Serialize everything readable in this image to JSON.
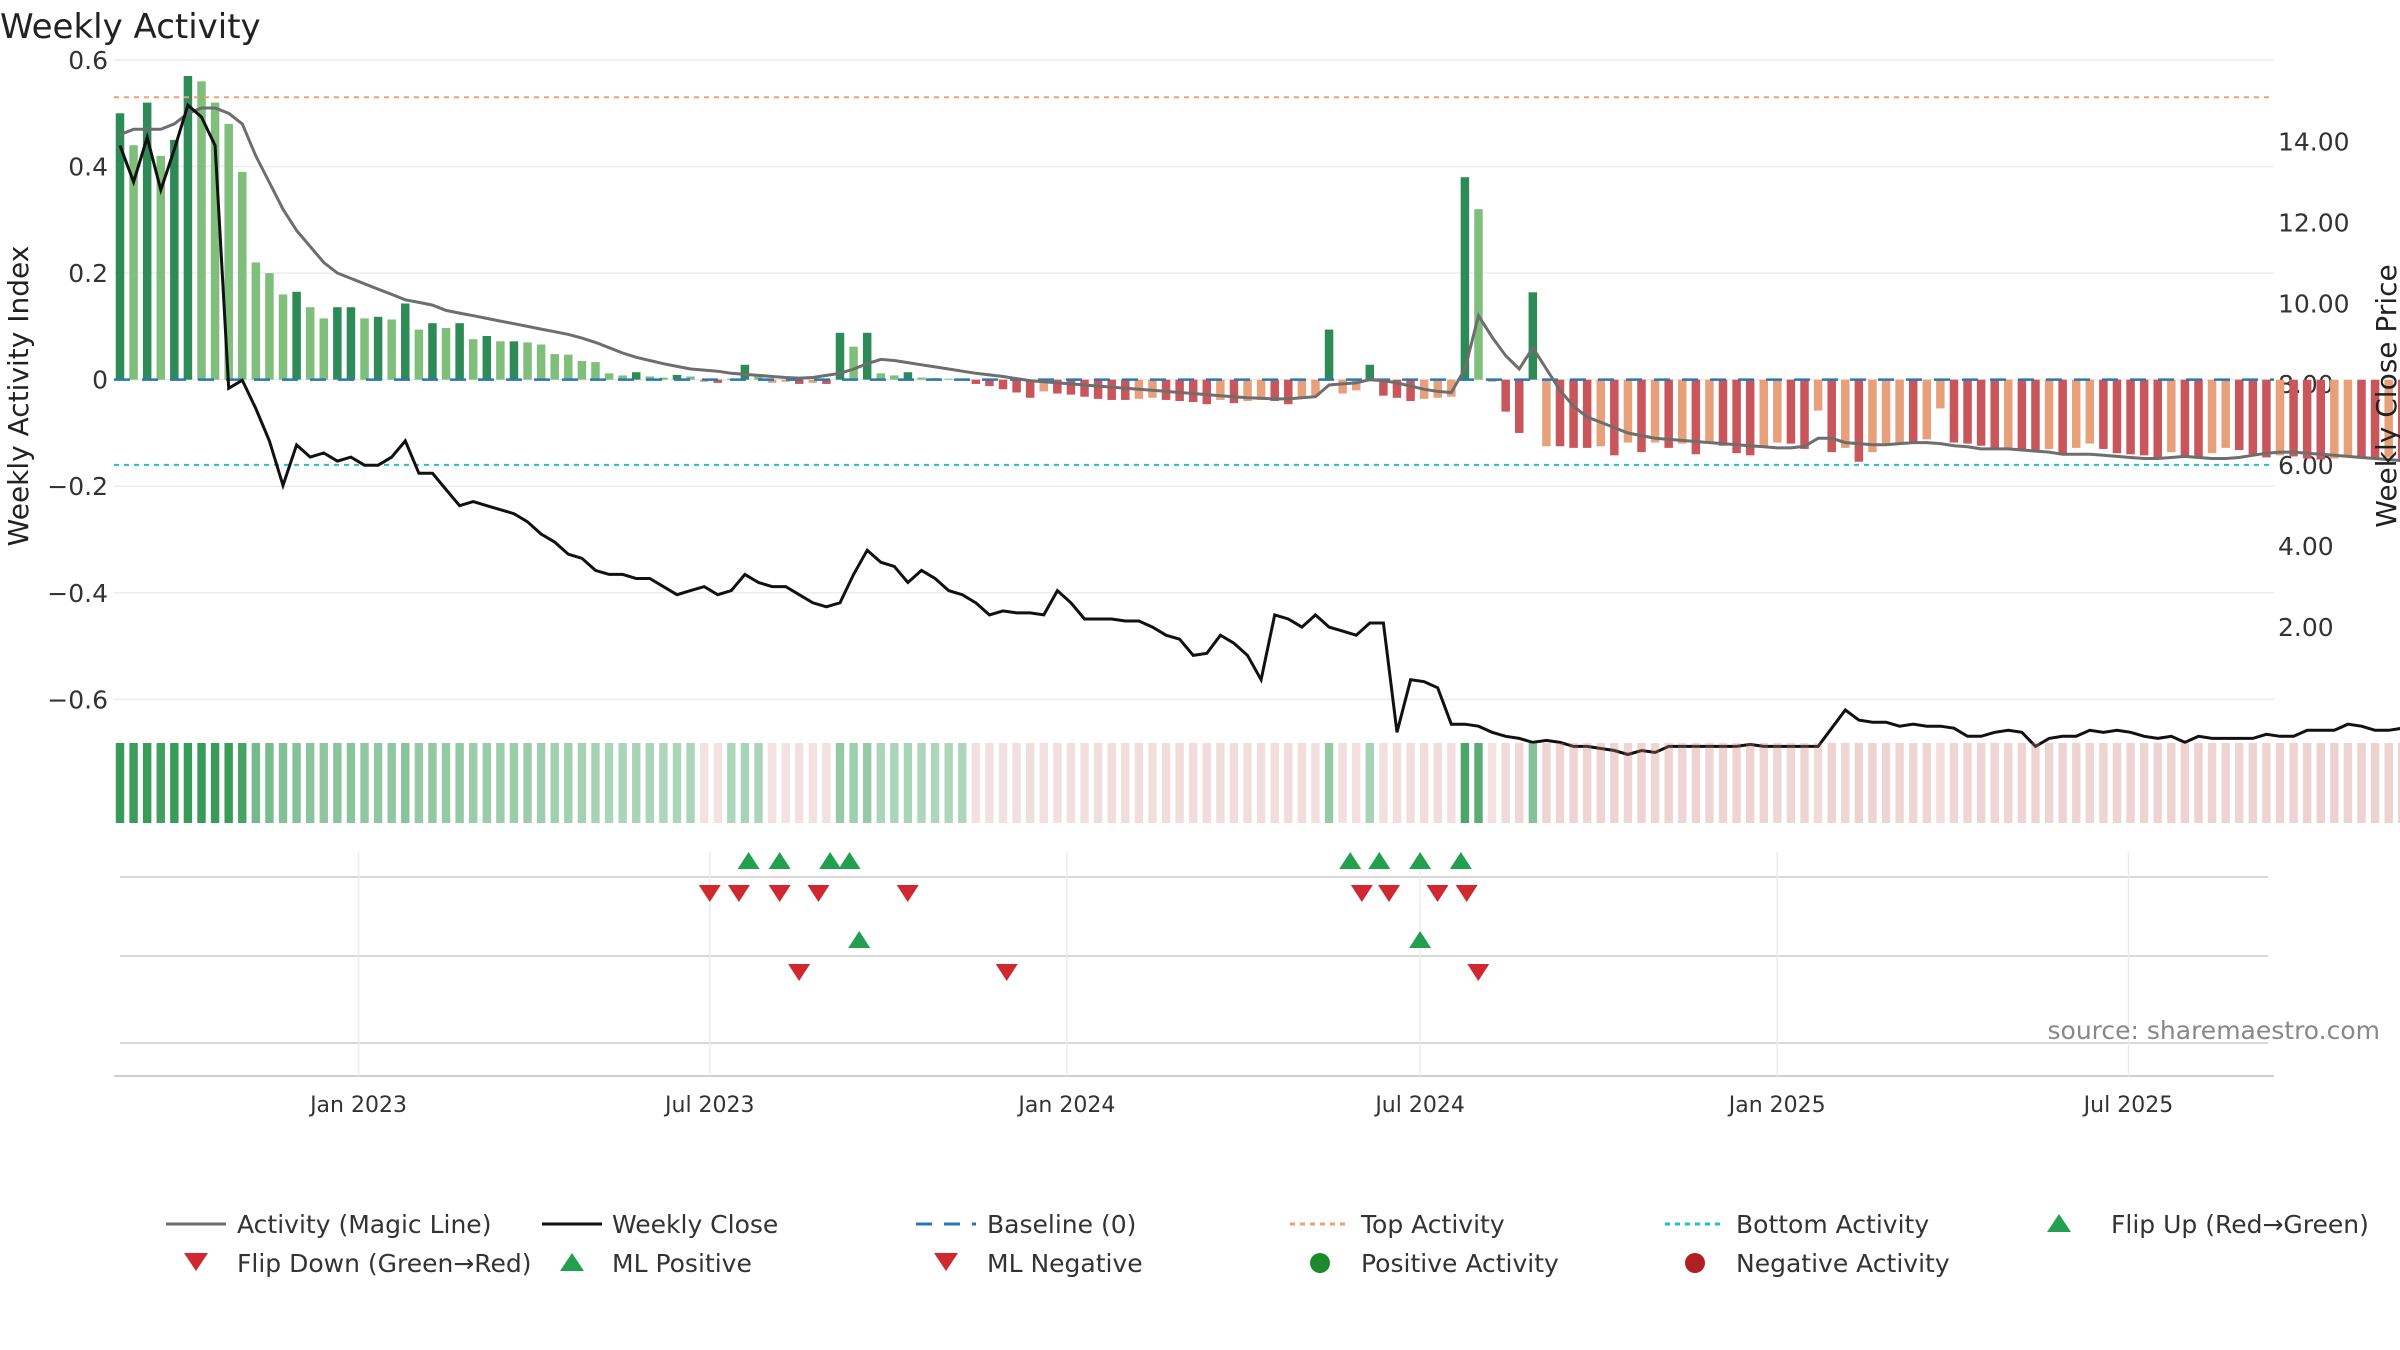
{
  "chart_data": {
    "type": "bar",
    "title": "Weekly Activity",
    "ylabel_left": "Weekly Activity Index",
    "ylabel_right": "Weekly Close Price",
    "source": "source: sharemaestro.com",
    "ylim_left": [
      -0.65,
      0.6
    ],
    "ylim_right": [
      0,
      14.9
    ],
    "yticks_left": [
      "0.6",
      "0.4",
      "0.2",
      "0",
      "−0.2",
      "−0.4",
      "−0.6"
    ],
    "yticks_left_values": [
      0.6,
      0.4,
      0.2,
      0,
      -0.2,
      -0.4,
      -0.6
    ],
    "yticks_right": [
      "14.00",
      "12.00",
      "10.00",
      "8.00",
      "6.00",
      "4.00",
      "2.00"
    ],
    "yticks_right_values": [
      14,
      12,
      10,
      8,
      6,
      4,
      2
    ],
    "x_range": [
      "2022-08-28",
      "2025-09-14"
    ],
    "xticks": [
      {
        "label": "Jan 2023",
        "date": "2023-01-01"
      },
      {
        "label": "Jul 2023",
        "date": "2023-07-01"
      },
      {
        "label": "Jan 2024",
        "date": "2024-01-01"
      },
      {
        "label": "Jul 2024",
        "date": "2024-07-01"
      },
      {
        "label": "Jan 2025",
        "date": "2025-01-01"
      },
      {
        "label": "Jul 2025",
        "date": "2025-07-01"
      }
    ],
    "top_activity": 0.53,
    "bottom_activity": -0.16,
    "baseline": 0,
    "week_start": "2022-08-28",
    "activity": [
      0.5,
      0.44,
      0.52,
      0.42,
      0.45,
      0.57,
      0.56,
      0.52,
      0.48,
      0.39,
      0.22,
      0.2,
      0.16,
      0.165,
      0.136,
      0.115,
      0.136,
      0.136,
      0.115,
      0.118,
      0.113,
      0.143,
      0.094,
      0.106,
      0.097,
      0.106,
      0.076,
      0.082,
      0.072,
      0.072,
      0.07,
      0.066,
      0.048,
      0.047,
      0.035,
      0.033,
      0.012,
      0.008,
      0.014,
      0.006,
      0.004,
      0.009,
      0.006,
      -0.004,
      -0.006,
      0.002,
      0.028,
      0.008,
      -0.006,
      -0.004,
      -0.008,
      -0.006,
      -0.008,
      0.088,
      0.062,
      0.088,
      0.012,
      0.008,
      0.014,
      0.004,
      0.003,
      0.002,
      0.001,
      -0.008,
      -0.012,
      -0.018,
      -0.024,
      -0.034,
      -0.022,
      -0.026,
      -0.028,
      -0.032,
      -0.036,
      -0.038,
      -0.038,
      -0.036,
      -0.034,
      -0.038,
      -0.04,
      -0.042,
      -0.046,
      -0.038,
      -0.044,
      -0.04,
      -0.038,
      -0.04,
      -0.046,
      -0.036,
      -0.03,
      0.094,
      -0.026,
      -0.02,
      0.028,
      -0.03,
      -0.034,
      -0.04,
      -0.036,
      -0.034,
      -0.032,
      0.38,
      0.32,
      -0.004,
      -0.06,
      -0.1,
      0.164,
      -0.125,
      -0.125,
      -0.128,
      -0.128,
      -0.125,
      -0.142,
      -0.118,
      -0.136,
      -0.118,
      -0.128,
      -0.12,
      -0.14,
      -0.12,
      -0.124,
      -0.138,
      -0.142,
      -0.128,
      -0.118,
      -0.12,
      -0.13,
      -0.058,
      -0.136,
      -0.128,
      -0.154,
      -0.136,
      -0.124,
      -0.118,
      -0.12,
      -0.112,
      -0.054,
      -0.118,
      -0.12,
      -0.124,
      -0.13,
      -0.128,
      -0.132,
      -0.136,
      -0.13,
      -0.14,
      -0.128,
      -0.12,
      -0.13,
      -0.138,
      -0.14,
      -0.142,
      -0.146,
      -0.136,
      -0.144,
      -0.148,
      -0.138,
      -0.128,
      -0.132,
      -0.14,
      -0.146,
      -0.142,
      -0.144,
      -0.148,
      -0.15,
      -0.148,
      -0.144,
      -0.148,
      -0.15,
      -0.146,
      -0.152,
      -0.158
    ],
    "magic_line": [
      0.46,
      0.47,
      0.47,
      0.47,
      0.48,
      0.5,
      0.51,
      0.51,
      0.5,
      0.48,
      0.42,
      0.37,
      0.32,
      0.28,
      0.25,
      0.22,
      0.2,
      0.19,
      0.18,
      0.17,
      0.16,
      0.15,
      0.145,
      0.14,
      0.13,
      0.125,
      0.12,
      0.115,
      0.11,
      0.105,
      0.1,
      0.095,
      0.09,
      0.085,
      0.078,
      0.07,
      0.06,
      0.05,
      0.042,
      0.036,
      0.03,
      0.025,
      0.02,
      0.018,
      0.016,
      0.012,
      0.01,
      0.008,
      0.006,
      0.004,
      0.003,
      0.004,
      0.008,
      0.012,
      0.02,
      0.03,
      0.038,
      0.036,
      0.032,
      0.028,
      0.024,
      0.02,
      0.016,
      0.012,
      0.009,
      0.006,
      0.002,
      -0.002,
      -0.004,
      -0.006,
      -0.008,
      -0.01,
      -0.012,
      -0.014,
      -0.016,
      -0.018,
      -0.02,
      -0.022,
      -0.024,
      -0.026,
      -0.028,
      -0.03,
      -0.032,
      -0.034,
      -0.035,
      -0.036,
      -0.036,
      -0.034,
      -0.032,
      -0.01,
      -0.008,
      -0.006,
      0.0,
      -0.002,
      -0.006,
      -0.012,
      -0.018,
      -0.022,
      -0.024,
      0.02,
      0.12,
      0.08,
      0.045,
      0.02,
      0.06,
      0.02,
      -0.02,
      -0.05,
      -0.07,
      -0.08,
      -0.09,
      -0.1,
      -0.105,
      -0.11,
      -0.112,
      -0.114,
      -0.116,
      -0.118,
      -0.12,
      -0.122,
      -0.124,
      -0.126,
      -0.128,
      -0.128,
      -0.125,
      -0.11,
      -0.11,
      -0.118,
      -0.12,
      -0.122,
      -0.122,
      -0.12,
      -0.118,
      -0.118,
      -0.12,
      -0.124,
      -0.126,
      -0.13,
      -0.13,
      -0.13,
      -0.132,
      -0.134,
      -0.136,
      -0.14,
      -0.14,
      -0.14,
      -0.142,
      -0.144,
      -0.146,
      -0.148,
      -0.148,
      -0.146,
      -0.144,
      -0.146,
      -0.148,
      -0.148,
      -0.146,
      -0.142,
      -0.138,
      -0.136,
      -0.136,
      -0.138,
      -0.14,
      -0.142,
      -0.144,
      -0.146,
      -0.148,
      -0.15,
      -0.152,
      -0.154
    ],
    "weekly_close": [
      13.9,
      13.0,
      14.1,
      12.8,
      13.8,
      14.9,
      14.6,
      13.9,
      7.9,
      8.1,
      7.4,
      6.6,
      5.5,
      6.5,
      6.2,
      6.3,
      6.1,
      6.2,
      6.0,
      6.0,
      6.2,
      6.6,
      5.8,
      5.8,
      5.4,
      5.0,
      5.1,
      5.0,
      4.9,
      4.8,
      4.6,
      4.3,
      4.1,
      3.8,
      3.7,
      3.4,
      3.3,
      3.3,
      3.2,
      3.2,
      3.0,
      2.8,
      2.9,
      3.0,
      2.8,
      2.9,
      3.3,
      3.1,
      3.0,
      3.0,
      2.8,
      2.6,
      2.5,
      2.6,
      3.3,
      3.9,
      3.6,
      3.5,
      3.1,
      3.4,
      3.2,
      2.9,
      2.8,
      2.6,
      2.3,
      2.4,
      2.35,
      2.35,
      2.3,
      2.9,
      2.6,
      2.2,
      2.2,
      2.2,
      2.15,
      2.15,
      2.0,
      1.8,
      1.7,
      1.3,
      1.35,
      1.8,
      1.6,
      1.3,
      0.7,
      2.3,
      2.2,
      2.0,
      2.3,
      2.0,
      1.9,
      1.8,
      2.1,
      2.1,
      -0.6,
      0.7,
      0.65,
      0.5,
      -0.4,
      -0.4,
      -0.45,
      -0.6,
      -0.7,
      -0.75,
      -0.85,
      -0.8,
      -0.85,
      -0.95,
      -0.95,
      -1.0,
      -1.05,
      -1.15,
      -1.05,
      -1.1,
      -0.95,
      -0.95,
      -0.95,
      -0.95,
      -0.95,
      -0.95,
      -0.9,
      -0.95,
      -0.95,
      -0.95,
      -0.95,
      -0.95,
      -0.5,
      -0.05,
      -0.3,
      -0.35,
      -0.35,
      -0.45,
      -0.4,
      -0.45,
      -0.45,
      -0.5,
      -0.7,
      -0.7,
      -0.6,
      -0.55,
      -0.6,
      -0.95,
      -0.75,
      -0.7,
      -0.7,
      -0.55,
      -0.6,
      -0.55,
      -0.6,
      -0.7,
      -0.75,
      -0.7,
      -0.85,
      -0.7,
      -0.75,
      -0.75,
      -0.75,
      -0.75,
      -0.65,
      -0.7,
      -0.7,
      -0.55,
      -0.55,
      -0.55,
      -0.4,
      -0.45,
      -0.55,
      -0.55,
      -0.5,
      -0.5
    ],
    "flip_up": [
      "2023-07-21",
      "2023-08-06",
      "2023-09-01",
      "2023-09-11",
      "2024-05-26",
      "2024-06-10",
      "2024-07-01",
      "2024-07-22"
    ],
    "flip_down": [
      "2023-07-01",
      "2023-07-16",
      "2023-08-06",
      "2023-08-26",
      "2023-10-11",
      "2024-06-01",
      "2024-06-15",
      "2024-07-10",
      "2024-07-25"
    ],
    "ml_positive": [
      "2023-09-16",
      "2024-07-01"
    ],
    "ml_negative": [
      "2023-08-16",
      "2023-12-01",
      "2024-07-31"
    ],
    "legend": {
      "row1": [
        "Activity (Magic Line)",
        "Weekly Close",
        "Baseline (0)",
        "Top Activity",
        "Bottom Activity",
        "Flip Up (Red→Green)"
      ],
      "row2": [
        "Flip Down (Green→Red)",
        "ML Positive",
        "ML Negative",
        "Positive Activity",
        "Negative Activity"
      ]
    },
    "legend_placement": "bottom",
    "grid": true,
    "colors": {
      "green_strong": "#2e8b57",
      "green_light": "#7fbf7b",
      "red_strong": "#c9565b",
      "red_light": "#e8a07a",
      "magic_line": "#6e6e6e",
      "close": "#111111",
      "baseline": "#2878b5",
      "top": "#f0a070",
      "bottom": "#20c0d0",
      "marker_up": "#22a050",
      "marker_down": "#d0282e",
      "pos_dot": "#1e8a2e",
      "neg_dot": "#b02020"
    }
  }
}
